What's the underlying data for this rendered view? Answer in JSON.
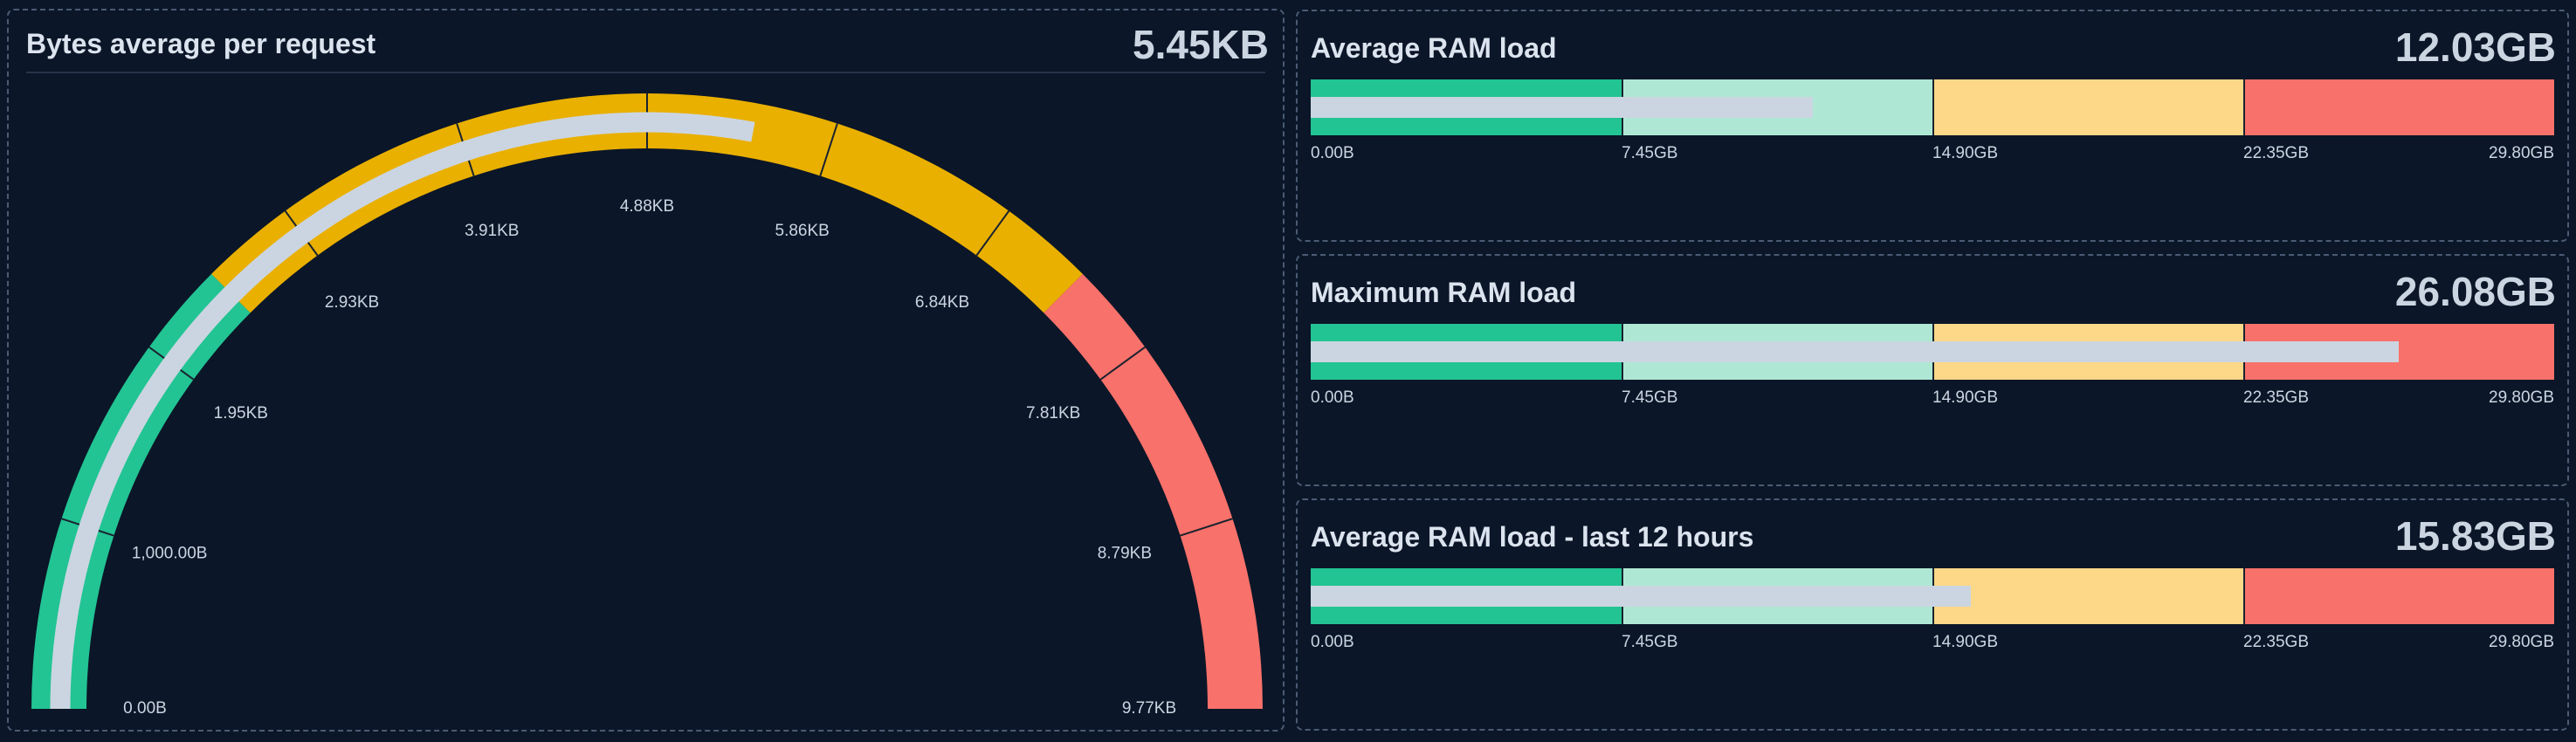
{
  "gauge_panel": {
    "title": "Bytes average per request",
    "value": "5.45KB"
  },
  "bullet_panels": [
    {
      "title": "Average RAM load",
      "value": "12.03GB"
    },
    {
      "title": "Maximum RAM load",
      "value": "26.08GB"
    },
    {
      "title": "Average RAM load - last 12 hours",
      "value": "15.83GB"
    }
  ],
  "colors": {
    "background": "#0b1628",
    "green": "#22c493",
    "light_green": "#aee8d4",
    "yellow": "#e9b000",
    "light_yellow": "#fdd888",
    "red": "#f8716a",
    "value_bar": "#cbd5e1"
  },
  "chart_data": [
    {
      "type": "gauge",
      "title": "Bytes average per request",
      "unit": "KB",
      "min": 0,
      "max": 9.77,
      "value": 5.45,
      "tick_labels": [
        "0.00B",
        "1,000.00B",
        "1.95KB",
        "2.93KB",
        "3.91KB",
        "4.88KB",
        "5.86KB",
        "6.84KB",
        "7.81KB",
        "8.79KB",
        "9.77KB"
      ],
      "thresholds": [
        {
          "from": 0,
          "to": 2.44,
          "color": "#22c493"
        },
        {
          "from": 2.44,
          "to": 7.33,
          "color": "#e9b000"
        },
        {
          "from": 7.33,
          "to": 9.77,
          "color": "#f8716a"
        }
      ]
    },
    {
      "type": "bullet",
      "title": "Average RAM load",
      "unit": "GB",
      "min": 0,
      "max": 29.8,
      "value": 12.03,
      "tick_labels": [
        "0.00B",
        "7.45GB",
        "14.90GB",
        "22.35GB",
        "29.80GB"
      ],
      "thresholds": [
        {
          "from": 0,
          "to": 7.45,
          "color": "#22c493"
        },
        {
          "from": 7.45,
          "to": 14.9,
          "color": "#aee8d4"
        },
        {
          "from": 14.9,
          "to": 22.35,
          "color": "#fdd888"
        },
        {
          "from": 22.35,
          "to": 29.8,
          "color": "#f8716a"
        }
      ]
    },
    {
      "type": "bullet",
      "title": "Maximum RAM load",
      "unit": "GB",
      "min": 0,
      "max": 29.8,
      "value": 26.08,
      "tick_labels": [
        "0.00B",
        "7.45GB",
        "14.90GB",
        "22.35GB",
        "29.80GB"
      ],
      "thresholds": [
        {
          "from": 0,
          "to": 7.45,
          "color": "#22c493"
        },
        {
          "from": 7.45,
          "to": 14.9,
          "color": "#aee8d4"
        },
        {
          "from": 14.9,
          "to": 22.35,
          "color": "#fdd888"
        },
        {
          "from": 22.35,
          "to": 29.8,
          "color": "#f8716a"
        }
      ]
    },
    {
      "type": "bullet",
      "title": "Average RAM load - last 12 hours",
      "unit": "GB",
      "min": 0,
      "max": 29.8,
      "value": 15.83,
      "tick_labels": [
        "0.00B",
        "7.45GB",
        "14.90GB",
        "22.35GB",
        "29.80GB"
      ],
      "thresholds": [
        {
          "from": 0,
          "to": 7.45,
          "color": "#22c493"
        },
        {
          "from": 7.45,
          "to": 14.9,
          "color": "#aee8d4"
        },
        {
          "from": 14.9,
          "to": 22.35,
          "color": "#fdd888"
        },
        {
          "from": 22.35,
          "to": 29.8,
          "color": "#f8716a"
        }
      ]
    }
  ]
}
